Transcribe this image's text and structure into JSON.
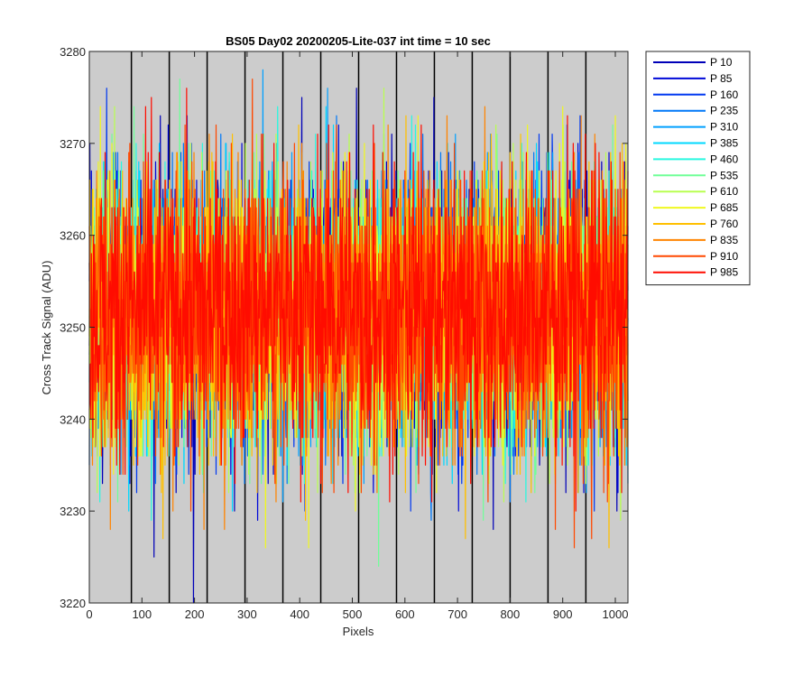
{
  "chart_data": {
    "type": "line",
    "title": "BS05 Day02 20200205-Lite-037 int time = 10 sec",
    "xlabel": "Pixels",
    "ylabel": "Cross Track Signal (ADU)",
    "xlim": [
      0,
      1024
    ],
    "ylim": [
      3220,
      3280
    ],
    "x_ticks": [
      0,
      100,
      200,
      300,
      400,
      500,
      600,
      700,
      800,
      900,
      1000
    ],
    "y_ticks": [
      3220,
      3230,
      3240,
      3250,
      3260,
      3270,
      3280
    ],
    "x_tick_labels": [
      "0",
      "100",
      "200",
      "300",
      "400",
      "500",
      "600",
      "700",
      "800",
      "900",
      "1000"
    ],
    "y_tick_labels": [
      "3220",
      "3230",
      "3240",
      "3250",
      "3260",
      "3270",
      "3280"
    ],
    "background_color": "#cccccc",
    "tap_boundaries": [
      80,
      152,
      224,
      296,
      368,
      440,
      512,
      584,
      656,
      728,
      800,
      872,
      944
    ],
    "tap_line_color": "#000000",
    "legend_position": "outside-top-right",
    "series_mean": 3252,
    "series_spread": 8,
    "series": [
      {
        "name": "P 10",
        "color": "#0000b8",
        "extremes": [
          [
            123,
            3225
          ],
          [
            135,
            3273
          ],
          [
            198,
            3220
          ],
          [
            276,
            3230
          ],
          [
            404,
            3275
          ],
          [
            508,
            3276
          ],
          [
            655,
            3275
          ],
          [
            768,
            3228
          ]
        ]
      },
      {
        "name": "P 85",
        "color": "#0008d8",
        "extremes": [
          [
            52,
            3267
          ],
          [
            150,
            3272
          ],
          [
            320,
            3229
          ],
          [
            540,
            3232
          ],
          [
            702,
            3230
          ],
          [
            870,
            3269
          ],
          [
            1005,
            3232
          ]
        ]
      },
      {
        "name": "P 160",
        "color": "#0038f0",
        "extremes": [
          [
            90,
            3232
          ],
          [
            186,
            3273
          ],
          [
            410,
            3230
          ],
          [
            610,
            3270
          ],
          [
            880,
            3271
          ],
          [
            960,
            3230
          ]
        ]
      },
      {
        "name": "P 235",
        "color": "#0078f8",
        "extremes": [
          [
            40,
            3235
          ],
          [
            250,
            3271
          ],
          [
            330,
            3234
          ],
          [
            470,
            3273
          ],
          [
            650,
            3229
          ],
          [
            800,
            3231
          ]
        ]
      },
      {
        "name": "P 310",
        "color": "#00a0ff",
        "extremes": [
          [
            60,
            3234
          ],
          [
            260,
            3270
          ],
          [
            330,
            3278
          ],
          [
            453,
            3276
          ],
          [
            560,
            3271
          ],
          [
            945,
            3232
          ]
        ]
      },
      {
        "name": "P 385",
        "color": "#00d8ff",
        "extremes": [
          [
            75,
            3230
          ],
          [
            290,
            3235
          ],
          [
            450,
            3274
          ],
          [
            690,
            3233
          ],
          [
            850,
            3270
          ],
          [
            990,
            3235
          ]
        ]
      },
      {
        "name": "P 460",
        "color": "#28f8e0",
        "extremes": [
          [
            30,
            3268
          ],
          [
            215,
            3270
          ],
          [
            358,
            3274
          ],
          [
            620,
            3272
          ],
          [
            830,
            3231
          ],
          [
            1000,
            3236
          ]
        ]
      },
      {
        "name": "P 535",
        "color": "#70ff98",
        "extremes": [
          [
            85,
            3274
          ],
          [
            235,
            3268
          ],
          [
            505,
            3232
          ],
          [
            550,
            3224
          ],
          [
            775,
            3271
          ],
          [
            930,
            3232
          ]
        ]
      },
      {
        "name": "P 610",
        "color": "#b8ff50",
        "extremes": [
          [
            15,
            3232
          ],
          [
            170,
            3235
          ],
          [
            355,
            3271
          ],
          [
            560,
            3276
          ],
          [
            760,
            3233
          ],
          [
            1010,
            3229
          ]
        ]
      },
      {
        "name": "P 685",
        "color": "#f0f820",
        "extremes": [
          [
            100,
            3236
          ],
          [
            335,
            3226
          ],
          [
            417,
            3226
          ],
          [
            625,
            3273
          ],
          [
            900,
            3274
          ],
          [
            1000,
            3273
          ]
        ]
      },
      {
        "name": "P 760",
        "color": "#ffc000",
        "extremes": [
          [
            140,
            3227
          ],
          [
            210,
            3234
          ],
          [
            520,
            3235
          ],
          [
            715,
            3227
          ],
          [
            840,
            3232
          ],
          [
            988,
            3226
          ]
        ]
      },
      {
        "name": "P 835",
        "color": "#ff8400",
        "extremes": [
          [
            40,
            3228
          ],
          [
            218,
            3228
          ],
          [
            460,
            3233
          ],
          [
            680,
            3273
          ],
          [
            935,
            3273
          ],
          [
            1018,
            3235
          ]
        ]
      },
      {
        "name": "P 910",
        "color": "#ff4800",
        "extremes": [
          [
            55,
            3239
          ],
          [
            390,
            3270
          ],
          [
            580,
            3240
          ],
          [
            922,
            3226
          ],
          [
            955,
            3227
          ]
        ]
      },
      {
        "name": "P 985",
        "color": "#ff0c00",
        "extremes": [
          [
            118,
            3275
          ],
          [
            240,
            3268
          ],
          [
            540,
            3272
          ],
          [
            713,
            3267
          ],
          [
            920,
            3270
          ]
        ]
      }
    ]
  }
}
